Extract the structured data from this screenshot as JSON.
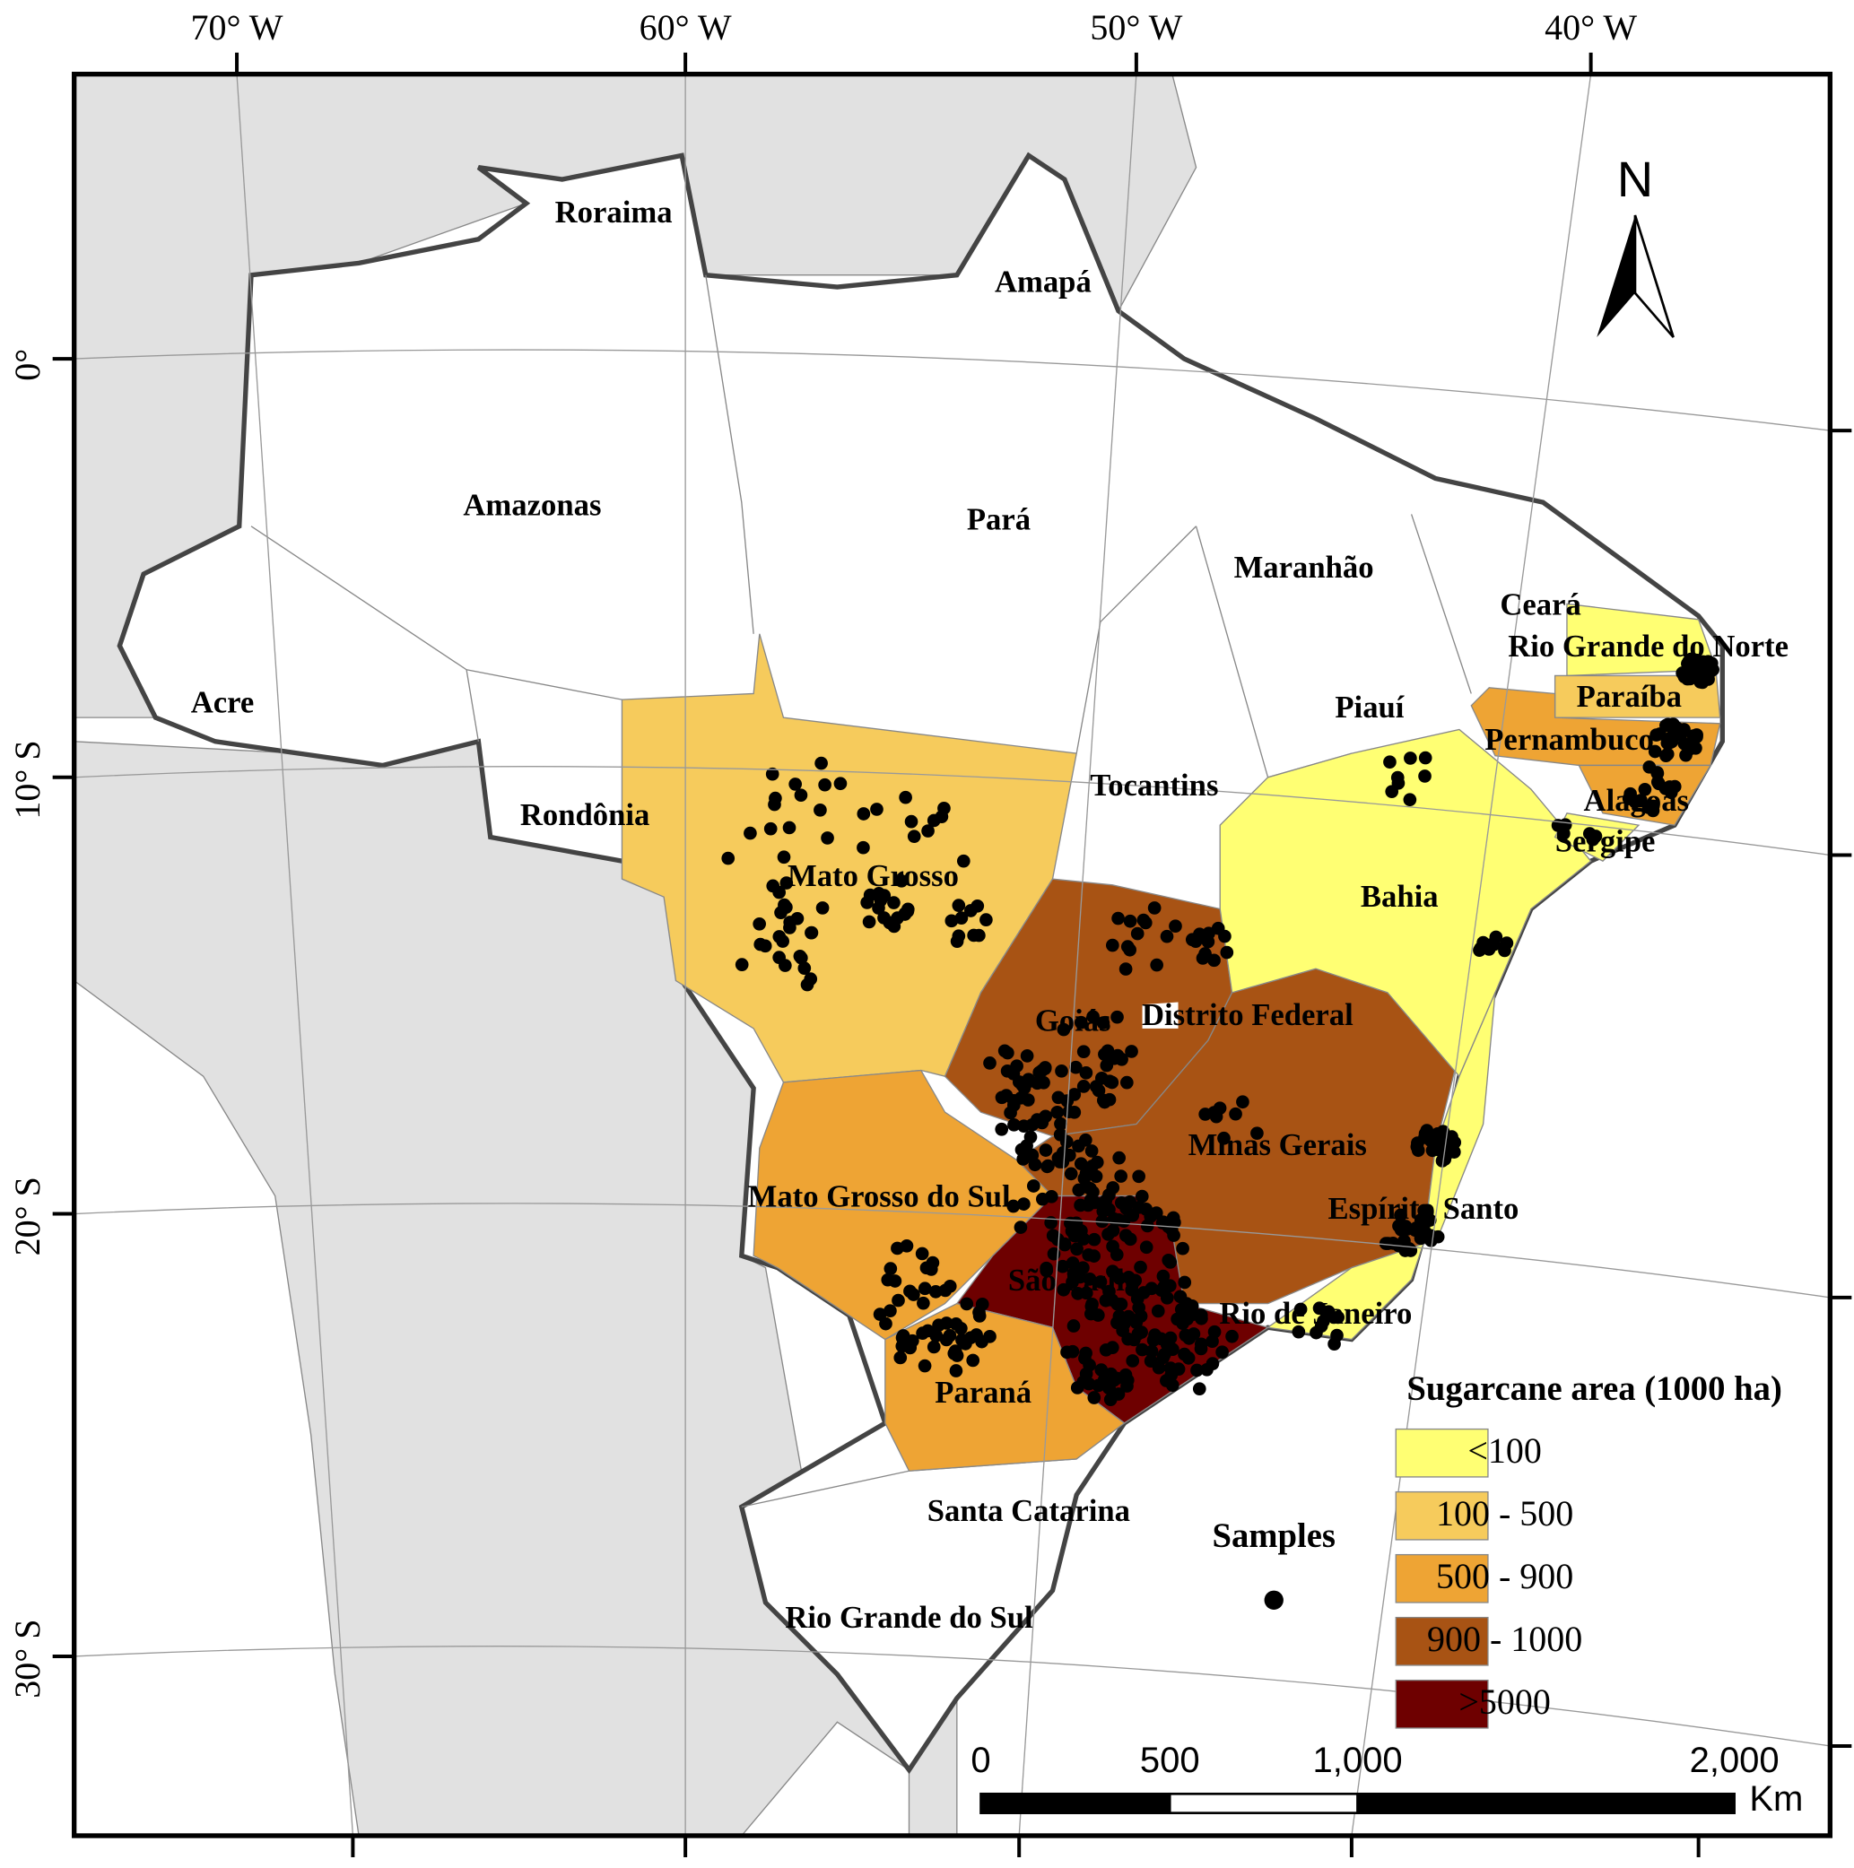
{
  "graticule": {
    "top": [
      "70° W",
      "60° W",
      "50° W",
      "40° W"
    ],
    "left": [
      "0°",
      "10° S",
      "20° S",
      "30° S"
    ]
  },
  "states": [
    "Roraima",
    "Amapá",
    "Amazonas",
    "Pará",
    "Maranhão",
    "Ceará",
    "Rio Grande do Norte",
    "Acre",
    "Piauí",
    "Paraíba",
    "Pernambuco",
    "Tocantins",
    "Rondônia",
    "Alagoas",
    "Sergipe",
    "Mato Grosso",
    "Bahia",
    "Goiás",
    "Distrito Federal",
    "Minas Gerais",
    "Mato Grosso do Sul",
    "Espírito Santo",
    "São Paulo",
    "Rio de Janeiro",
    "Paraná",
    "Santa Catarina",
    "Rio Grande do Sul"
  ],
  "legend": {
    "title": "Sugarcane area (1000 ha)",
    "classes": [
      {
        "label": "<100",
        "color": "#ffff73"
      },
      {
        "label": "100 - 500",
        "color": "#f6cb5c"
      },
      {
        "label": "500 - 900",
        "color": "#eea434"
      },
      {
        "label": "900 - 1000",
        "color": "#a85314"
      },
      {
        "label": ">5000",
        "color": "#6e0000"
      }
    ]
  },
  "samples_label": "Samples",
  "north": "N",
  "scale_bar": {
    "labels": [
      "0",
      "500",
      "1,000",
      "2,000"
    ],
    "unit": "Km"
  }
}
